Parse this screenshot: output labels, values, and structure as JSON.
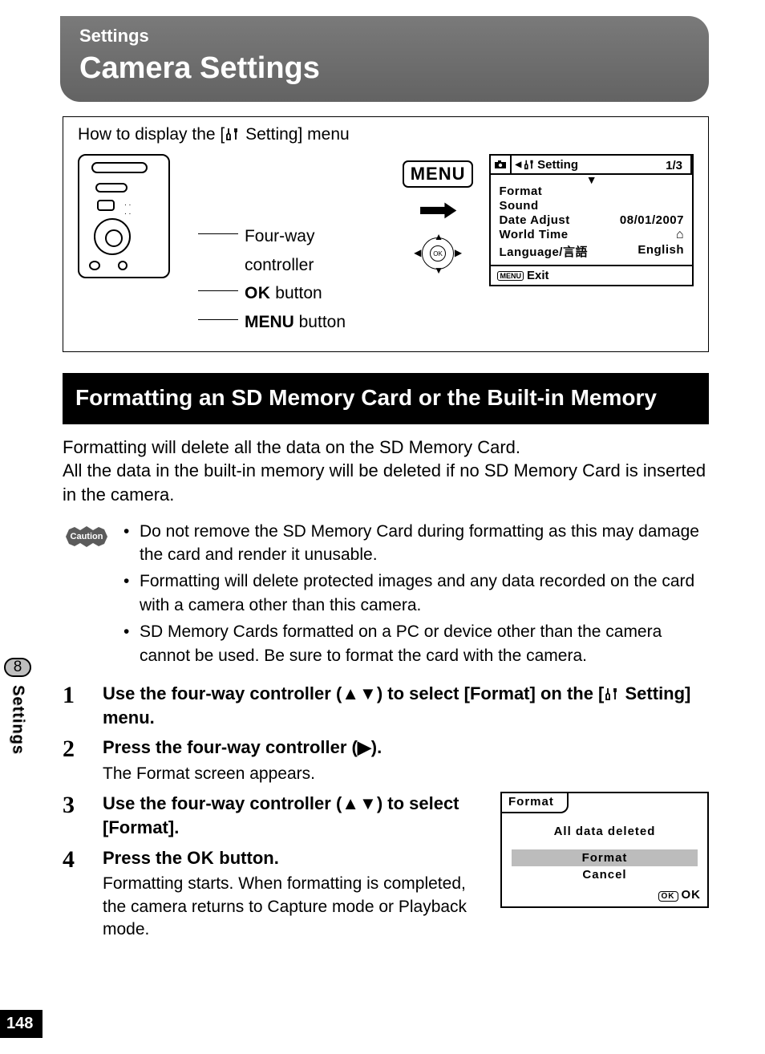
{
  "title": {
    "eyebrow": "Settings",
    "main": "Camera Settings"
  },
  "diagram": {
    "heading_prefix": "How to display the [",
    "heading_suffix": " Setting] menu",
    "labels": {
      "fourway": "Four-way controller",
      "ok_bold": "OK",
      "ok_rest": " button",
      "menu_bold": "MENU",
      "menu_rest": " button",
      "menu_button_text": "MENU"
    }
  },
  "screen1": {
    "title": "Setting",
    "page_indicator": "1/3",
    "items": [
      {
        "label": "Format",
        "value": ""
      },
      {
        "label": "Sound",
        "value": ""
      },
      {
        "label": "Date Adjust",
        "value": "08/01/2007"
      },
      {
        "label": "World Time",
        "value": "⌂"
      },
      {
        "label": "Language/言語",
        "value": "English"
      }
    ],
    "footer_menu": "MENU",
    "footer_exit": "Exit"
  },
  "section_heading": "Formatting an SD Memory Card or the Built-in Memory",
  "intro_text": "Formatting will delete all the data on the SD Memory Card.\nAll the data in the built-in memory will be deleted if no SD Memory Card is inserted in the camera.",
  "caution": {
    "badge": "Caution",
    "items": [
      "Do not remove the SD Memory Card during formatting as this may damage the card and render it unusable.",
      "Formatting will delete protected images and any data recorded on the card with a camera other than this camera.",
      "SD Memory Cards formatted on a PC or device other than the camera cannot be used. Be sure to format the card with the camera."
    ]
  },
  "steps": [
    {
      "num": "1",
      "title_pre": "Use the four-way controller (▲▼) to select [Format] on the [",
      "title_post": " Setting] menu."
    },
    {
      "num": "2",
      "title": "Press the four-way controller (▶).",
      "desc": "The Format screen appears."
    },
    {
      "num": "3",
      "title": "Use the four-way controller (▲▼) to select [Format]."
    },
    {
      "num": "4",
      "title_pre": "Press the ",
      "ok": "OK",
      "title_post": " button.",
      "desc": "Formatting starts. When formatting is completed, the camera returns to Capture mode or Playback mode."
    }
  ],
  "screen2": {
    "tab": "Format",
    "message": "All data deleted",
    "option_selected": "Format",
    "option_other": "Cancel",
    "ok_box": "OK",
    "ok_label": "OK"
  },
  "side": {
    "chapter_num": "8",
    "chapter_label": "Settings"
  },
  "page_number": "148",
  "colors": {
    "titlebar_bg_top": "#7a7a7a",
    "titlebar_bg_bottom": "#636363",
    "section_bg": "#000000",
    "screen_highlight": "#bcbcbc",
    "side_badge_bg": "#bfbfbf"
  }
}
